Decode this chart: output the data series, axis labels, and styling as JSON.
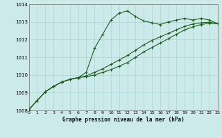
{
  "title": "Graphe pression niveau de la mer (hPa)",
  "bg_color": "#cceaea",
  "grid_color": "#aad4d4",
  "line_color": "#1a5e1a",
  "xlim": [
    0,
    23
  ],
  "ylim": [
    1008,
    1014
  ],
  "xticks": [
    0,
    1,
    2,
    3,
    4,
    5,
    6,
    7,
    8,
    9,
    10,
    11,
    12,
    13,
    14,
    15,
    16,
    17,
    18,
    19,
    20,
    21,
    22,
    23
  ],
  "yticks": [
    1008,
    1009,
    1010,
    1011,
    1012,
    1013,
    1014
  ],
  "series1_x": [
    0,
    1,
    2,
    3,
    4,
    5,
    6,
    7,
    8,
    9,
    10,
    11,
    12,
    13,
    14,
    15,
    16,
    17,
    18,
    19,
    20,
    21,
    22,
    23
  ],
  "series1_y": [
    1008.05,
    1008.55,
    1009.05,
    1009.35,
    1009.6,
    1009.75,
    1009.85,
    1010.15,
    1011.5,
    1012.3,
    1013.1,
    1013.5,
    1013.62,
    1013.3,
    1013.05,
    1012.95,
    1012.85,
    1013.0,
    1013.1,
    1013.2,
    1013.1,
    1013.2,
    1013.1,
    1012.9
  ],
  "series2_x": [
    0,
    1,
    2,
    3,
    4,
    5,
    6,
    7,
    8,
    9,
    10,
    11,
    12,
    13,
    14,
    15,
    16,
    17,
    18,
    19,
    20,
    21,
    22,
    23
  ],
  "series2_y": [
    1008.05,
    1008.55,
    1009.05,
    1009.35,
    1009.6,
    1009.75,
    1009.85,
    1009.95,
    1010.15,
    1010.35,
    1010.6,
    1010.85,
    1011.1,
    1011.4,
    1011.7,
    1011.95,
    1012.15,
    1012.35,
    1012.55,
    1012.75,
    1012.88,
    1012.95,
    1012.98,
    1012.9
  ],
  "series3_x": [
    0,
    1,
    2,
    3,
    4,
    5,
    6,
    7,
    8,
    9,
    10,
    11,
    12,
    13,
    14,
    15,
    16,
    17,
    18,
    19,
    20,
    21,
    22,
    23
  ],
  "series3_y": [
    1008.05,
    1008.55,
    1009.05,
    1009.35,
    1009.6,
    1009.75,
    1009.85,
    1009.9,
    1010.0,
    1010.15,
    1010.3,
    1010.5,
    1010.7,
    1011.0,
    1011.3,
    1011.55,
    1011.8,
    1012.05,
    1012.3,
    1012.55,
    1012.72,
    1012.85,
    1012.92,
    1012.9
  ]
}
